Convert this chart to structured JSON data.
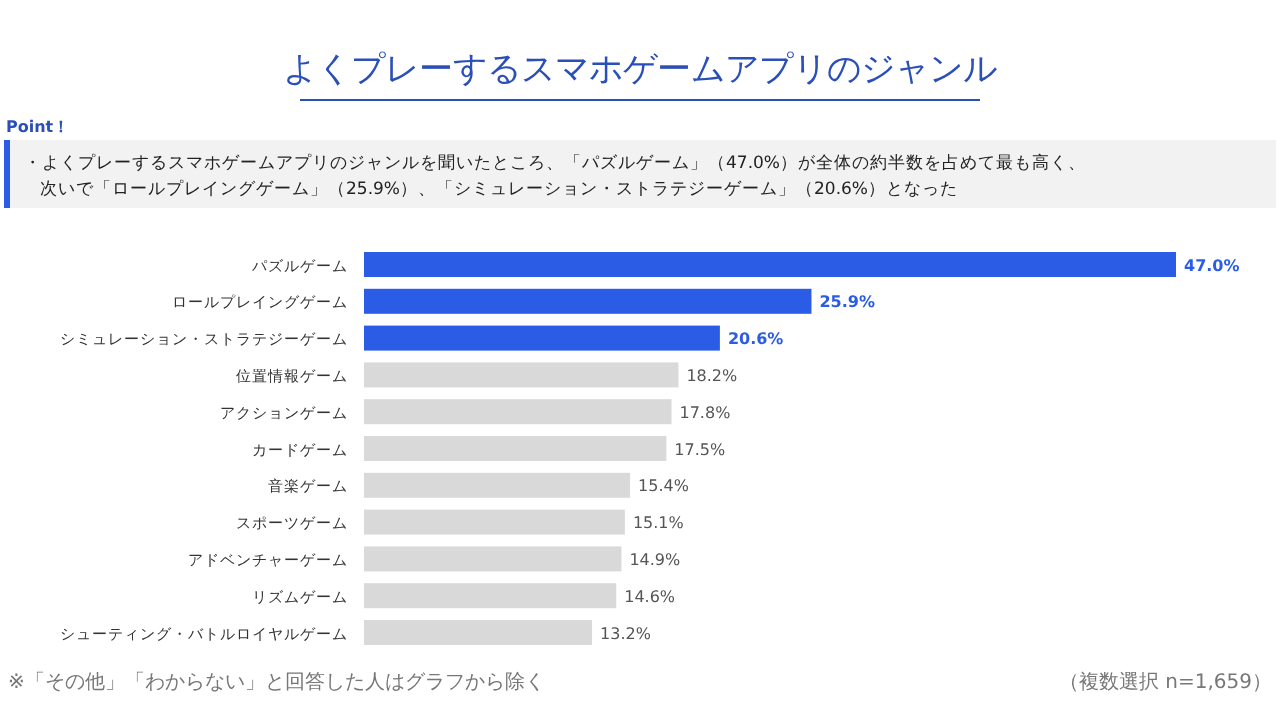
{
  "chart_data": {
    "type": "bar",
    "orientation": "horizontal",
    "title": "よくプレーするスマホゲームアプリのジャンル",
    "subtitle": "・よくプレーするスマホゲームアプリのジャンルを聞いたところ、「パズルゲーム」（47.0%）が全体の約半数を占めて最も高く、次いで「ロールプレイングゲーム」（25.9%）、「シミュレーション・ストラテジーゲーム」（20.6%）となった",
    "categories": [
      "パズルゲーム",
      "ロールプレイングゲーム",
      "シミュレーション・ストラテジーゲーム",
      "位置情報ゲーム",
      "アクションゲーム",
      "カードゲーム",
      "音楽ゲーム",
      "スポーツゲーム",
      "アドベンチャーゲーム",
      "リズムゲーム",
      "シューティング・バトルロイヤルゲーム"
    ],
    "values": [
      47.0,
      25.9,
      20.6,
      18.2,
      17.8,
      17.5,
      15.4,
      15.1,
      14.9,
      14.6,
      13.2
    ],
    "value_labels": [
      "47.0%",
      "25.9%",
      "20.6%",
      "18.2%",
      "17.8%",
      "17.5%",
      "15.4%",
      "15.1%",
      "14.9%",
      "14.6%",
      "13.2%"
    ],
    "colors": [
      "#2b5ce6",
      "#2b5ce6",
      "#2b5ce6",
      "#d9d9d9",
      "#d9d9d9",
      "#d9d9d9",
      "#d9d9d9",
      "#d9d9d9",
      "#d9d9d9",
      "#d9d9d9",
      "#d9d9d9"
    ],
    "annotations": [
      "Point！",
      "※「その他」「わからない」と回答した人はグラフから除く",
      "（複数選択 n=1,659）"
    ]
  }
}
